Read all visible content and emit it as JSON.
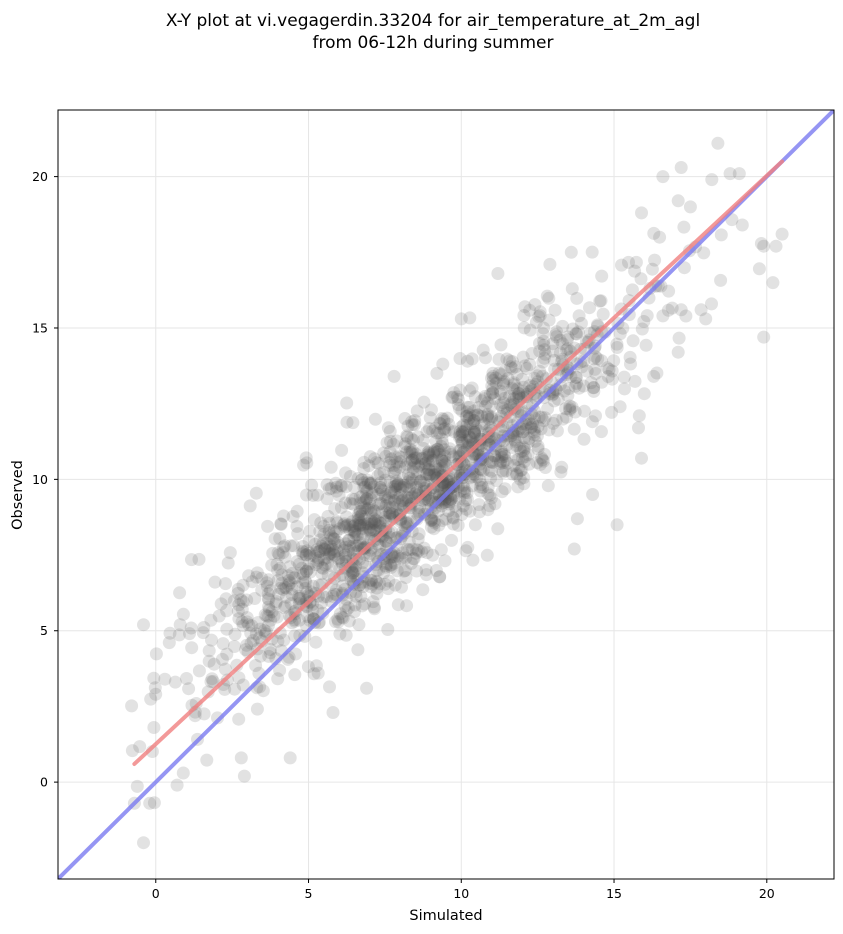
{
  "chart_data": {
    "type": "scatter",
    "title": [
      "X-Y plot at vi.vegagerdin.33204 for air_temperature_at_2m_agl",
      "from 06-12h during summer"
    ],
    "xlabel": "Simulated",
    "ylabel": "Observed",
    "xlim": [
      -3.2,
      22.2
    ],
    "ylim": [
      -3.2,
      22.2
    ],
    "xticks": [
      0,
      5,
      10,
      15,
      20
    ],
    "yticks": [
      0,
      5,
      10,
      15,
      20
    ],
    "xtick_labels": [
      "0",
      "5",
      "10",
      "15",
      "20"
    ],
    "ytick_labels": [
      "0",
      "5",
      "10",
      "15",
      "20"
    ],
    "grid": true,
    "point_color": "#555555",
    "point_count": 1600,
    "fit_line": {
      "color": "#f08080",
      "x": [
        -0.7,
        20.5
      ],
      "y": [
        0.6,
        20.5
      ]
    },
    "identity_line": {
      "color": "#7b7bf0",
      "x": [
        -3.2,
        22.2
      ],
      "y": [
        -3.2,
        22.2
      ]
    },
    "highlighted_points": [
      [
        -0.4,
        5.2
      ],
      [
        -0.7,
        -0.7
      ],
      [
        -0.4,
        -2.0
      ],
      [
        -0.2,
        -0.7
      ],
      [
        0.3,
        3.4
      ],
      [
        0.8,
        5.2
      ],
      [
        0.7,
        -0.1
      ],
      [
        0.9,
        0.3
      ],
      [
        18.4,
        21.1
      ],
      [
        17.2,
        20.3
      ],
      [
        16.6,
        20.0
      ],
      [
        18.8,
        20.1
      ],
      [
        19.1,
        20.1
      ],
      [
        18.2,
        19.9
      ],
      [
        15.9,
        18.8
      ],
      [
        17.5,
        19.0
      ],
      [
        17.1,
        19.2
      ],
      [
        19.2,
        18.4
      ],
      [
        20.5,
        18.1
      ],
      [
        20.3,
        17.7
      ],
      [
        19.9,
        17.7
      ],
      [
        20.2,
        16.5
      ],
      [
        19.9,
        14.7
      ],
      [
        18.0,
        15.3
      ],
      [
        17.1,
        14.2
      ],
      [
        16.6,
        15.4
      ],
      [
        17.2,
        15.6
      ],
      [
        15.8,
        11.7
      ],
      [
        15.9,
        10.7
      ],
      [
        15.1,
        8.5
      ],
      [
        13.7,
        7.7
      ],
      [
        13.8,
        8.7
      ],
      [
        14.3,
        9.5
      ],
      [
        12.9,
        17.1
      ],
      [
        11.2,
        16.8
      ],
      [
        13.6,
        17.5
      ],
      [
        7.8,
        13.4
      ],
      [
        10.0,
        15.3
      ],
      [
        16.3,
        13.4
      ],
      [
        15.2,
        12.4
      ],
      [
        2.9,
        0.2
      ],
      [
        4.4,
        0.8
      ],
      [
        6.9,
        3.1
      ],
      [
        2.8,
        0.8
      ],
      [
        5.8,
        2.3
      ]
    ]
  }
}
